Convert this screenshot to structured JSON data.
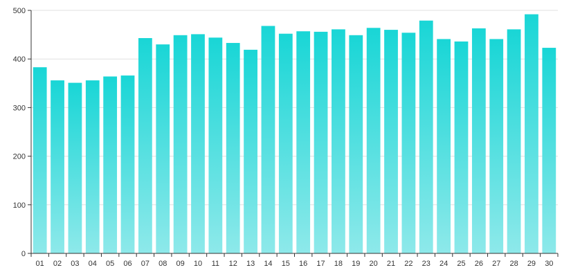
{
  "chart_data": {
    "type": "bar",
    "categories": [
      "01",
      "02",
      "03",
      "04",
      "05",
      "06",
      "07",
      "08",
      "09",
      "10",
      "11",
      "12",
      "13",
      "14",
      "15",
      "16",
      "17",
      "18",
      "19",
      "20",
      "21",
      "22",
      "23",
      "24",
      "25",
      "26",
      "27",
      "28",
      "29",
      "30"
    ],
    "series": [
      {
        "values": [
          383,
          356,
          351,
          356,
          364,
          366,
          443,
          430,
          449,
          451,
          444,
          433,
          419,
          468,
          452,
          457,
          456,
          461,
          449,
          464,
          460,
          454,
          479,
          441,
          436,
          463,
          441,
          461,
          492,
          423
        ]
      }
    ],
    "ylim": [
      0,
      500
    ],
    "yticks": [
      0,
      100,
      200,
      300,
      400,
      500
    ],
    "grid": true,
    "title": "",
    "xlabel": "",
    "ylabel": "",
    "colors": {
      "bar_top": "#19d6d6",
      "bar_bottom": "#8ee9ea",
      "axis": "#333333",
      "grid": "#e0e0e0"
    }
  }
}
